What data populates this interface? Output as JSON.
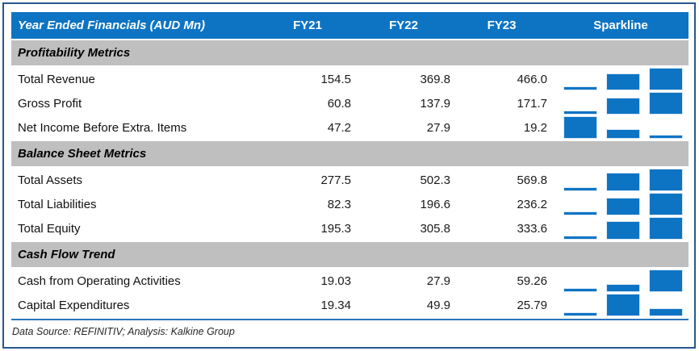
{
  "table": {
    "title": "Year Ended Financials (AUD Mn)",
    "year_columns": [
      "FY21",
      "FY22",
      "FY23"
    ],
    "sparkline_label": "Sparkline"
  },
  "sections": [
    {
      "title": "Profitability Metrics",
      "rows": [
        {
          "label": "Total Revenue",
          "values": [
            "154.5",
            "369.8",
            "466.0"
          ]
        },
        {
          "label": "Gross Profit",
          "values": [
            "60.8",
            "137.9",
            "171.7"
          ]
        },
        {
          "label": "Net Income Before Extra. Items",
          "values": [
            "47.2",
            "27.9",
            "19.2"
          ]
        }
      ]
    },
    {
      "title": "Balance Sheet Metrics",
      "rows": [
        {
          "label": "Total Assets",
          "values": [
            "277.5",
            "502.3",
            "569.8"
          ]
        },
        {
          "label": "Total Liabilities",
          "values": [
            "82.3",
            "196.6",
            "236.2"
          ]
        },
        {
          "label": "Total Equity",
          "values": [
            "195.3",
            "305.8",
            "333.6"
          ]
        }
      ]
    },
    {
      "title": "Cash Flow Trend",
      "rows": [
        {
          "label": "Cash from Operating Activities",
          "values": [
            "19.03",
            "27.9",
            "59.26"
          ]
        },
        {
          "label": "Capital Expenditures",
          "values": [
            "19.34",
            "49.9",
            "25.79"
          ]
        }
      ]
    }
  ],
  "footer_note": "Data Source: REFINITIV; Analysis: Kalkine Group",
  "colors": {
    "header_bg": "#0d74c4",
    "section_bg": "#bfbfbf",
    "spark_bar": "#0d74c4",
    "outer_border": "#27588e",
    "bottom_rule": "#2b74ba"
  },
  "chart_data": {
    "type": "table",
    "title": "Year Ended Financials (AUD Mn)",
    "columns": [
      "FY21",
      "FY22",
      "FY23"
    ],
    "sections": [
      {
        "name": "Profitability Metrics",
        "series": [
          {
            "name": "Total Revenue",
            "values": [
              154.5,
              369.8,
              466.0
            ]
          },
          {
            "name": "Gross Profit",
            "values": [
              60.8,
              137.9,
              171.7
            ]
          },
          {
            "name": "Net Income Before Extra. Items",
            "values": [
              47.2,
              27.9,
              19.2
            ]
          }
        ]
      },
      {
        "name": "Balance Sheet Metrics",
        "series": [
          {
            "name": "Total Assets",
            "values": [
              277.5,
              502.3,
              569.8
            ]
          },
          {
            "name": "Total Liabilities",
            "values": [
              82.3,
              196.6,
              236.2
            ]
          },
          {
            "name": "Total Equity",
            "values": [
              195.3,
              305.8,
              333.6
            ]
          }
        ]
      },
      {
        "name": "Cash Flow Trend",
        "series": [
          {
            "name": "Cash from Operating Activities",
            "values": [
              19.03,
              27.9,
              59.26
            ]
          },
          {
            "name": "Capital Expenditures",
            "values": [
              19.34,
              49.9,
              25.79
            ]
          }
        ]
      }
    ],
    "sparkline": {
      "type": "bar",
      "scaling": "per-row min-max",
      "position": "right column"
    },
    "source_note": "Data Source: REFINITIV; Analysis: Kalkine Group"
  }
}
